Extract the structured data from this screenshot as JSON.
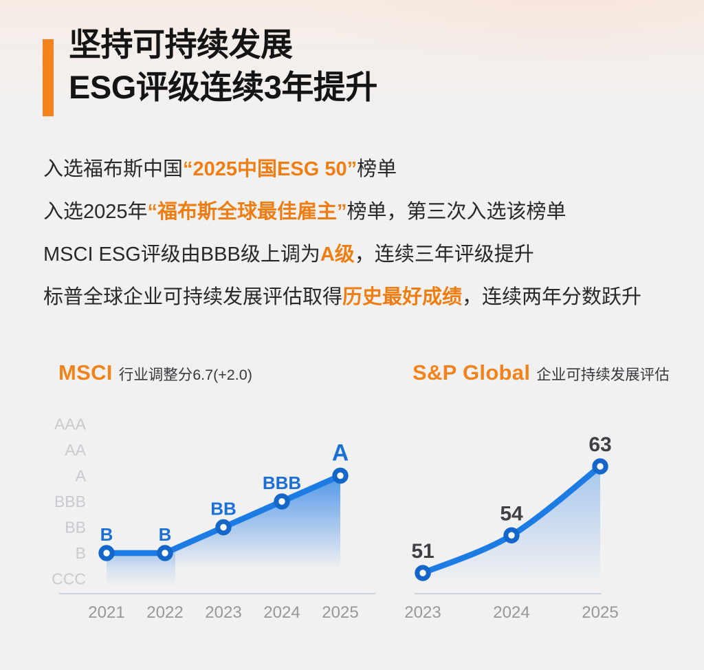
{
  "header": {
    "title_line1": "坚持可持续发展",
    "title_line2": "ESG评级连续3年提升"
  },
  "bullets": [
    {
      "pre": "入选福布斯中国",
      "em": "“2025中国ESG 50”",
      "post": "榜单"
    },
    {
      "pre": "入选2025年",
      "em": "“福布斯全球最佳雇主”",
      "post": "榜单，第三次入选该榜单"
    },
    {
      "pre": "MSCI ESG评级由BBB级上调为",
      "em": "A级",
      "post": "，连续三年评级提升"
    },
    {
      "pre": "标普全球企业可持续发展评估取得",
      "em": "历史最好成绩",
      "post": "，连续两年分数跃升"
    }
  ],
  "charts": [
    {
      "brand": "MSCI",
      "desc": "行业调整分6.7(+2.0)"
    },
    {
      "brand": "S&P Global",
      "desc": "企业可持续发展评估"
    }
  ],
  "colors": {
    "accent_orange": "#f1831f",
    "line_blue": "#1d7ce4",
    "marker_ring_blue": "#1467c9",
    "point_label_blue": "#1c6fd4",
    "value_label_gray": "#3f4045",
    "axis_gray": "#ccd2da",
    "tick_gray": "#97979c",
    "scale_gray": "#c9c9cf"
  },
  "chart_data": [
    {
      "type": "line",
      "title": "MSCI 行业调整分6.7(+2.0)",
      "x": [
        "2021",
        "2022",
        "2023",
        "2024",
        "2025"
      ],
      "values": [
        "B",
        "B",
        "BB",
        "BBB",
        "A"
      ],
      "point_labels": [
        "B",
        "B",
        "BB",
        "BBB",
        "A"
      ],
      "y_scale_bottom_to_top": [
        "CCC",
        "B",
        "BB",
        "BBB",
        "A",
        "AA",
        "AAA"
      ],
      "grid": false,
      "area": true,
      "smooth": false,
      "legend": "none",
      "line_color": "#1d7ce4",
      "label_color": "#1c6fd4"
    },
    {
      "type": "line",
      "title": "S&P Global 企业可持续发展评估",
      "x": [
        "2023",
        "2024",
        "2025"
      ],
      "values": [
        51,
        54,
        63
      ],
      "point_labels": [
        "51",
        "54",
        "63"
      ],
      "ylim": [
        48,
        66
      ],
      "grid": false,
      "area": true,
      "smooth": true,
      "legend": "none",
      "line_color": "#1d7ce4",
      "label_color": "#3f4045"
    }
  ]
}
